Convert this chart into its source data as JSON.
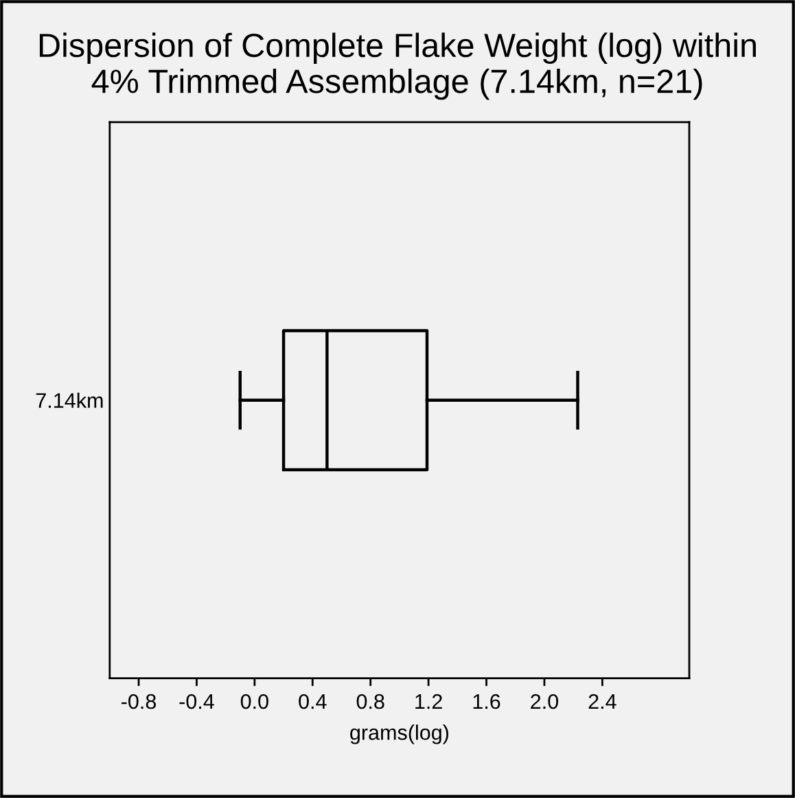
{
  "chart_data": {
    "type": "box",
    "title": "Dispersion of Complete Flake Weight (log) within\n4% Trimmed Assemblage (7.14km, n=21)",
    "xlabel": "grams(log)",
    "categories": [
      "7.14km"
    ],
    "orientation": "horizontal",
    "color": "#000000",
    "boxes": [
      {
        "low": -0.1,
        "q1": 0.2,
        "median": 0.5,
        "q3": 1.19,
        "high": 2.23
      }
    ],
    "xlim": [
      -1,
      3
    ],
    "xticks": [
      -0.8,
      -0.4,
      {
        "value": 0,
        "label": "0.0"
      },
      0.4,
      0.8,
      1.2,
      1.6,
      {
        "value": 2,
        "label": "2.0"
      },
      2.4
    ],
    "grid": false
  }
}
